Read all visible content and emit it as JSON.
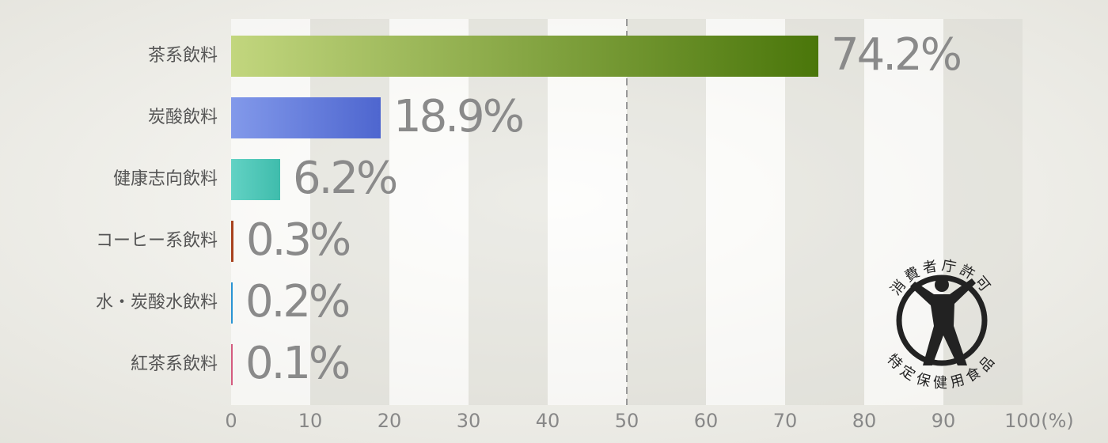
{
  "chart_data": {
    "type": "bar",
    "orientation": "horizontal",
    "categories": [
      "茶系飲料",
      "炭酸飲料",
      "健康志向飲料",
      "コーヒー系飲料",
      "水・炭酸水飲料",
      "紅茶系飲料"
    ],
    "values": [
      74.2,
      18.9,
      6.2,
      0.3,
      0.2,
      0.1
    ],
    "value_labels": [
      "74.2%",
      "18.9%",
      "6.2%",
      "0.3%",
      "0.2%",
      "0.1%"
    ],
    "colors": [
      [
        "#c2d67e",
        "#4a760a"
      ],
      [
        "#8299ea",
        "#4e66cf"
      ],
      [
        "#62d2c4",
        "#3fbcac"
      ],
      [
        "#a8421e",
        "#a8421e"
      ],
      [
        "#2a94d4",
        "#2a94d4"
      ],
      [
        "#d45c80",
        "#d45c80"
      ]
    ],
    "xlim": [
      0,
      100
    ],
    "xticks": [
      0,
      10,
      20,
      30,
      40,
      50,
      60,
      70,
      80,
      90,
      100
    ],
    "xlabel": "(%)",
    "reference_x": 50,
    "annotations": [
      "消費者庁許可",
      "特定保健用食品"
    ]
  }
}
